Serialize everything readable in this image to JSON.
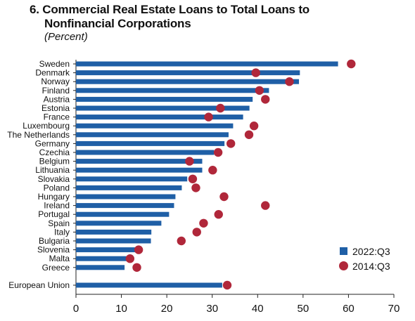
{
  "chart_data": {
    "type": "bar",
    "title": "6. Commercial Real Estate Loans to Total Loans to Nonfinancial Corporations",
    "title_lines": [
      "6. Commercial Real Estate Loans to Total Loans to",
      "Nonfinancial Corporations"
    ],
    "subtitle": "(Percent)",
    "orientation": "horizontal",
    "categories": [
      "Sweden",
      "Denmark",
      "Norway",
      "Finland",
      "Austria",
      "Estonia",
      "France",
      "Luxembourg",
      "The Netherlands",
      "Germany",
      "Czechia",
      "Belgium",
      "Lithuania",
      "Slovakia",
      "Poland",
      "Hungary",
      "Ireland",
      "Portugal",
      "Spain",
      "Italy",
      "Bulgaria",
      "Slovenia",
      "Malta",
      "Greece",
      "European Union"
    ],
    "series": [
      {
        "name": "2022:Q3",
        "mark": "bar",
        "color": "#1f5fa6",
        "values": [
          57.7,
          49.3,
          49.1,
          42.5,
          38.9,
          38.2,
          36.8,
          34.6,
          33.6,
          32.7,
          30.4,
          27.8,
          27.8,
          24.5,
          23.3,
          21.9,
          21.6,
          20.5,
          18.8,
          16.6,
          16.5,
          13.6,
          12.4,
          10.7,
          32.2
        ]
      },
      {
        "name": "2014:Q3",
        "mark": "dot",
        "color": "#b0273a",
        "values": [
          60.6,
          39.6,
          47.0,
          40.4,
          41.7,
          31.8,
          29.2,
          39.2,
          38.1,
          34.1,
          31.3,
          25.0,
          30.1,
          25.7,
          26.4,
          32.6,
          41.7,
          31.4,
          28.1,
          26.6,
          23.2,
          13.8,
          11.9,
          13.4,
          33.3
        ]
      }
    ],
    "xlim": [
      0,
      70
    ],
    "xticks": [
      "0",
      "10",
      "20",
      "30",
      "40",
      "50",
      "60",
      "70"
    ],
    "grid": false,
    "legend_position": "bottom-right"
  }
}
